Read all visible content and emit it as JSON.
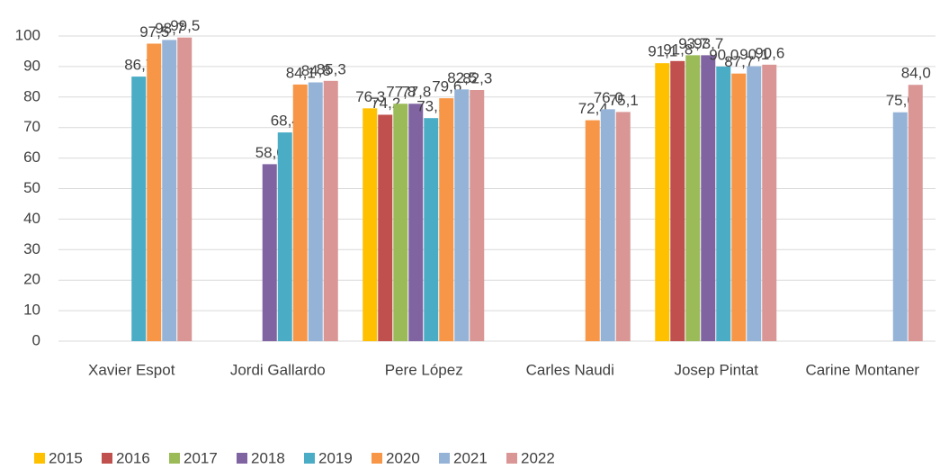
{
  "chart_data": {
    "type": "bar",
    "categories": [
      "Xavier Espot",
      "Jordi Gallardo",
      "Pere López",
      "Carles Naudi",
      "Josep Pintat",
      "Carine Montaner"
    ],
    "series": [
      {
        "name": "2015",
        "color": "#ffc000",
        "values": [
          null,
          null,
          76.3,
          null,
          91.1,
          null
        ],
        "value_labels": [
          null,
          null,
          "76,3",
          null,
          "91,1",
          null
        ]
      },
      {
        "name": "2016",
        "color": "#c0504d",
        "values": [
          null,
          null,
          74.2,
          null,
          91.8,
          null
        ],
        "value_labels": [
          null,
          null,
          "74,2",
          null,
          "91,8",
          null
        ]
      },
      {
        "name": "2017",
        "color": "#9bbb59",
        "values": [
          null,
          null,
          77.8,
          null,
          93.7,
          null
        ],
        "value_labels": [
          null,
          null,
          "77,8",
          null,
          "93,7",
          null
        ]
      },
      {
        "name": "2018",
        "color": "#8064a2",
        "values": [
          null,
          58.0,
          77.8,
          null,
          93.7,
          null
        ],
        "value_labels": [
          null,
          "58,0",
          "77,8",
          null,
          "93,7",
          null
        ]
      },
      {
        "name": "2019",
        "color": "#4bacc6",
        "values": [
          86.7,
          68.4,
          73.1,
          null,
          90.0,
          null
        ],
        "value_labels": [
          "86,7",
          "68,4",
          "73,1",
          null,
          "90,0",
          null
        ]
      },
      {
        "name": "2020",
        "color": "#f79646",
        "values": [
          97.5,
          84.1,
          79.6,
          72.4,
          87.7,
          null
        ],
        "value_labels": [
          "97,5",
          "84,1",
          "79,6",
          "72,4",
          "87,7",
          null
        ]
      },
      {
        "name": "2021",
        "color": "#95b3d7",
        "values": [
          98.7,
          84.8,
          82.5,
          76.0,
          90.1,
          75.0
        ],
        "value_labels": [
          "98,7",
          "84,8",
          "82,5",
          "76,0",
          "90,1",
          "75,0"
        ]
      },
      {
        "name": "2022",
        "color": "#d99694",
        "values": [
          99.5,
          85.3,
          82.3,
          75.1,
          90.6,
          84.0
        ],
        "value_labels": [
          "99,5",
          "85,3",
          "82,3",
          "75,1",
          "90,6",
          "84,0"
        ]
      }
    ],
    "ylim": [
      0,
      100
    ],
    "yticks": [
      0,
      10,
      20,
      30,
      40,
      50,
      60,
      70,
      80,
      90,
      100
    ],
    "grid": true,
    "legend": "bottom"
  }
}
